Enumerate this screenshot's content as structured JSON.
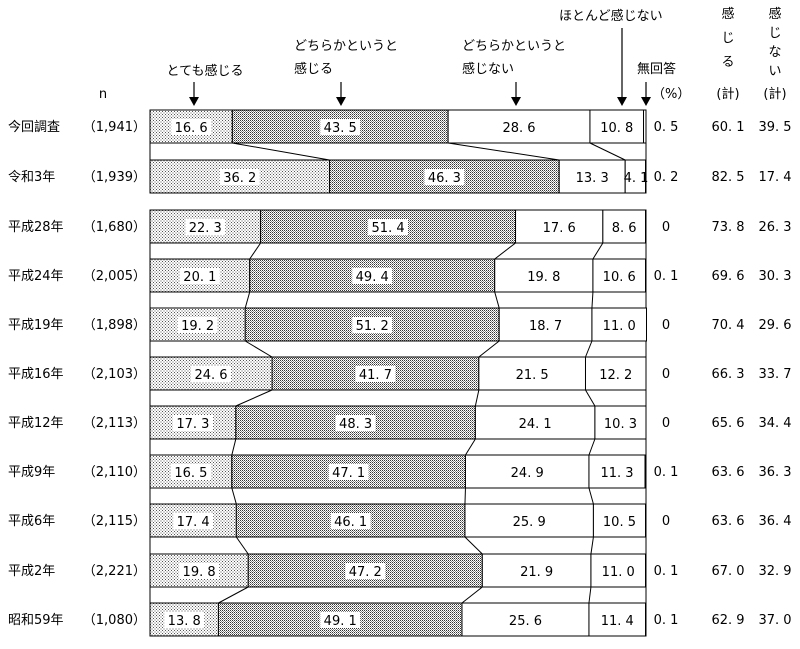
{
  "chart_data": {
    "type": "bar",
    "stacked": true,
    "orientation": "horizontal",
    "percent_unit": "（%）",
    "n_label": "n",
    "series_labels": [
      "とても感じる",
      "どちらかというと感じる",
      "どちらかというと感じない",
      "ほとんど感じない",
      "無回答"
    ],
    "total_headers": [
      "感じる(計)",
      "感じない(計)"
    ],
    "categories": [
      "今回調査",
      "令和3年",
      "平成28年",
      "平成24年",
      "平成19年",
      "平成16年",
      "平成12年",
      "平成9年",
      "平成6年",
      "平成2年",
      "昭和59年"
    ],
    "n": [
      "（1,941）",
      "（1,939）",
      "（1,680）",
      "（2,005）",
      "（1,898）",
      "（2,103）",
      "（2,113）",
      "（2,110）",
      "（2,115）",
      "（2,221）",
      "（1,080）"
    ],
    "series": [
      {
        "name": "とても感じる",
        "values": [
          16.6,
          36.2,
          22.3,
          20.1,
          19.2,
          24.6,
          17.3,
          16.5,
          17.4,
          19.8,
          13.8
        ]
      },
      {
        "name": "どちらかというと感じる",
        "values": [
          43.5,
          46.3,
          51.4,
          49.4,
          51.2,
          41.7,
          48.3,
          47.1,
          46.1,
          47.2,
          49.1
        ]
      },
      {
        "name": "どちらかというと感じない",
        "values": [
          28.6,
          13.3,
          17.6,
          19.8,
          18.7,
          21.5,
          24.1,
          24.9,
          25.9,
          21.9,
          25.6
        ]
      },
      {
        "name": "ほとんど感じない",
        "values": [
          10.8,
          4.1,
          8.6,
          10.6,
          11.0,
          12.2,
          10.3,
          11.3,
          10.5,
          11.0,
          11.4
        ]
      }
    ],
    "no_answer": [
      "0.5",
      "0.2",
      "0",
      "0.1",
      "0",
      "0",
      "0",
      "0.1",
      "0",
      "0.1",
      "0.1"
    ],
    "feel_total": [
      "60.1",
      "82.5",
      "73.8",
      "69.6",
      "70.4",
      "66.3",
      "65.6",
      "63.6",
      "63.6",
      "67.0",
      "62.9"
    ],
    "not_feel_total": [
      "39.5",
      "17.4",
      "26.3",
      "30.3",
      "29.6",
      "33.7",
      "34.4",
      "36.3",
      "36.4",
      "32.9",
      "37.0"
    ]
  }
}
